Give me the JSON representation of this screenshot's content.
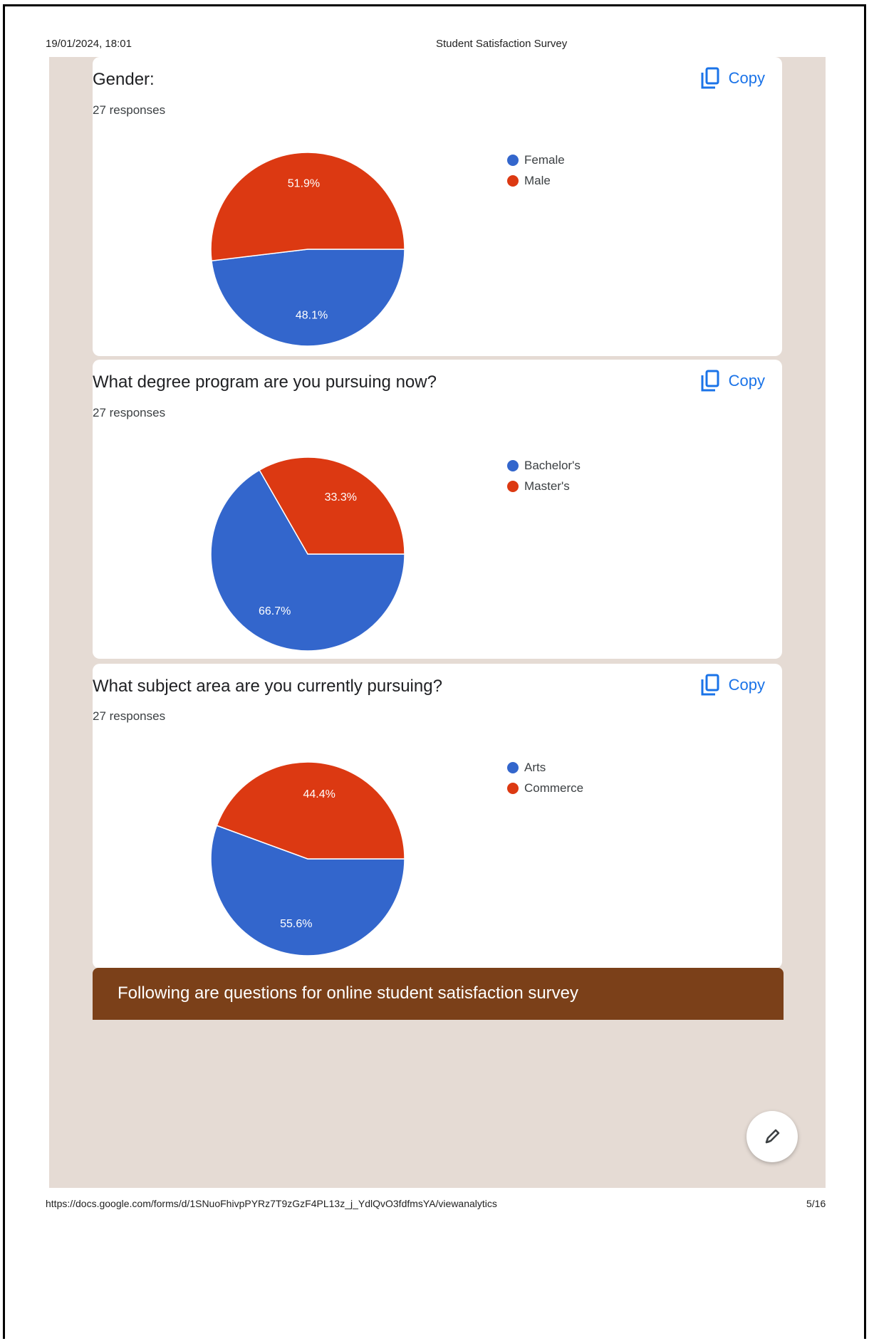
{
  "print_header": {
    "datetime": "19/01/2024, 18:01",
    "title": "Student Satisfaction Survey"
  },
  "print_footer": {
    "url": "https://docs.google.com/forms/d/1SNuoFhivpPYRz7T9zGzF4PL13z_j_YdlQvO3fdfmsYA/viewanalytics",
    "page": "5/16"
  },
  "copy_label": "Copy",
  "colors": {
    "blue": "#3366cc",
    "red": "#dc3912",
    "banner": "#7b4019",
    "backdrop": "#e5dbd4",
    "link": "#1a73e8"
  },
  "questions": [
    {
      "title": "Gender:",
      "responses": "27 responses",
      "chart_data": {
        "type": "pie",
        "slices": [
          {
            "label": "Female",
            "value": 48.1,
            "display": "48.1%",
            "color": "#3366cc"
          },
          {
            "label": "Male",
            "value": 51.9,
            "display": "51.9%",
            "color": "#dc3912"
          }
        ]
      }
    },
    {
      "title": "What degree program are you pursuing now?",
      "responses": "27 responses",
      "chart_data": {
        "type": "pie",
        "slices": [
          {
            "label": "Bachelor's",
            "value": 66.7,
            "display": "66.7%",
            "color": "#3366cc"
          },
          {
            "label": "Master's",
            "value": 33.3,
            "display": "33.3%",
            "color": "#dc3912"
          }
        ]
      }
    },
    {
      "title": "What subject area are you currently pursuing?",
      "responses": "27 responses",
      "chart_data": {
        "type": "pie",
        "slices": [
          {
            "label": "Arts",
            "value": 55.6,
            "display": "55.6%",
            "color": "#3366cc"
          },
          {
            "label": "Commerce",
            "value": 44.4,
            "display": "44.4%",
            "color": "#dc3912"
          }
        ]
      }
    }
  ],
  "section_banner": "Following are questions for online student satisfaction survey",
  "fab_icon": "pencil-icon"
}
